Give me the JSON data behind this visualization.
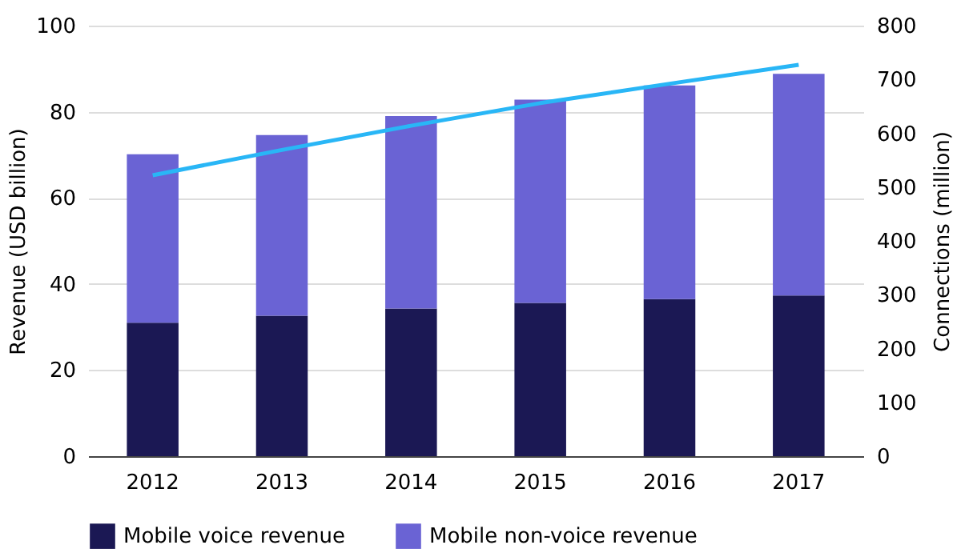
{
  "chart_data": {
    "type": "bar",
    "stacked": true,
    "categories": [
      "2012",
      "2013",
      "2014",
      "2015",
      "2016",
      "2017"
    ],
    "ylabel": "Revenue (USD billion)",
    "y2label": "Connections (million)",
    "ylim": [
      0,
      100
    ],
    "yticks": [
      0,
      20,
      40,
      60,
      80,
      100
    ],
    "y2lim": [
      0,
      800
    ],
    "y2ticks": [
      0,
      100,
      200,
      300,
      400,
      500,
      600,
      700,
      800
    ],
    "grid": "y",
    "legend": "bottom",
    "series": [
      {
        "name": "Mobile voice revenue",
        "color": "#1b1854",
        "values": [
          31.0,
          32.6,
          34.3,
          35.6,
          36.5,
          37.3
        ]
      },
      {
        "name": "Mobile non-voice revenue",
        "color": "#6a63d4",
        "values": [
          39.1,
          42.0,
          44.7,
          47.2,
          49.6,
          51.5
        ]
      },
      {
        "type": "line",
        "axis": "y2",
        "color": "#29b6f6",
        "values": [
          522,
          569,
          614,
          656,
          692,
          727
        ]
      }
    ]
  }
}
